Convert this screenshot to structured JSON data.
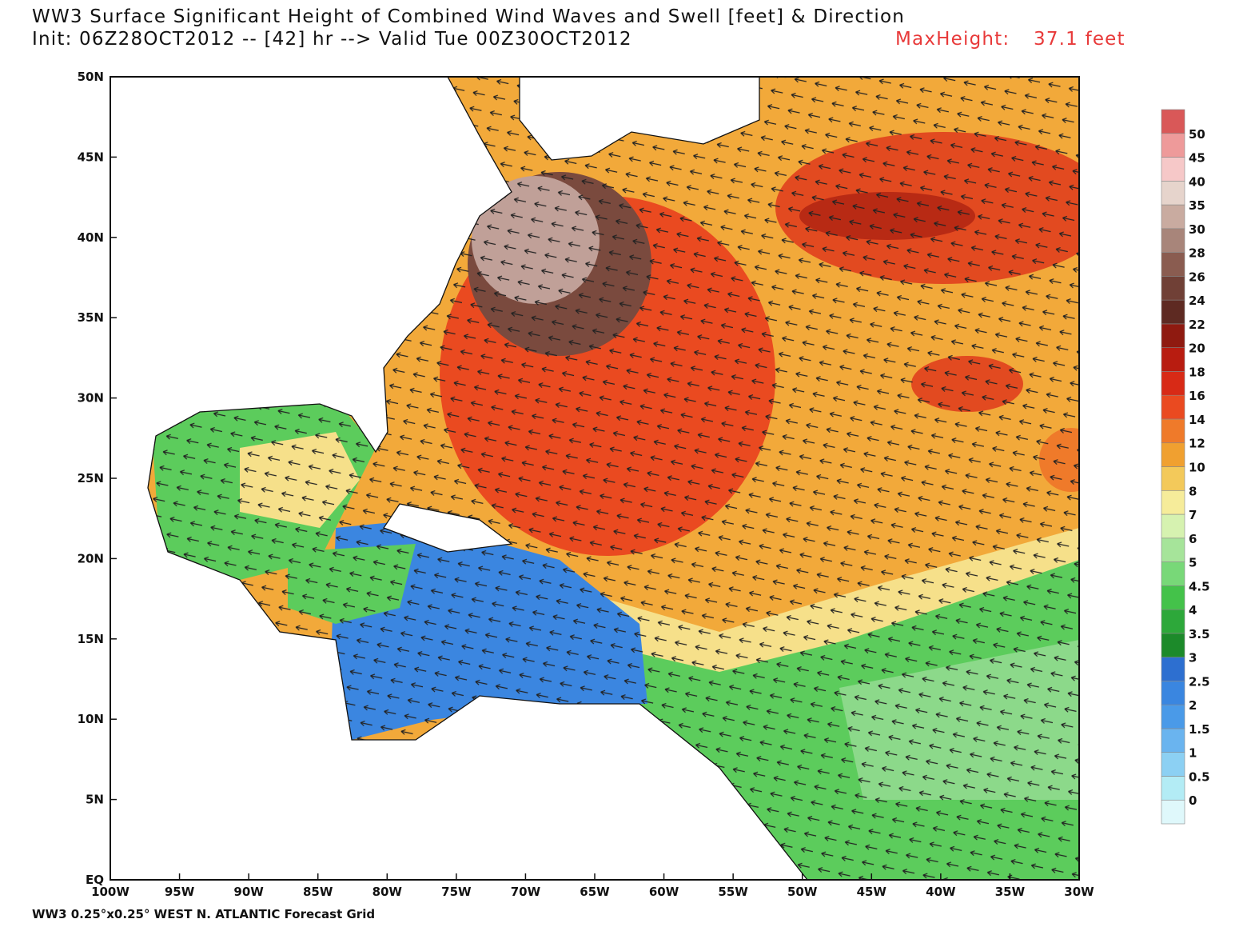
{
  "header": {
    "title": "WW3 Surface Significant Height of Combined Wind Waves and Swell [feet] & Direction",
    "subtitle": "Init: 06Z28OCT2012 -- [42] hr --> Valid Tue 00Z30OCT2012",
    "max_label": "MaxHeight:",
    "max_value": "37.1 feet"
  },
  "map": {
    "xlim": [
      -100,
      -30
    ],
    "ylim": [
      0,
      50
    ],
    "xticks": [
      {
        "value": -100,
        "label": "100W"
      },
      {
        "value": -95,
        "label": "95W"
      },
      {
        "value": -90,
        "label": "90W"
      },
      {
        "value": -85,
        "label": "85W"
      },
      {
        "value": -80,
        "label": "80W"
      },
      {
        "value": -75,
        "label": "75W"
      },
      {
        "value": -70,
        "label": "70W"
      },
      {
        "value": -65,
        "label": "65W"
      },
      {
        "value": -60,
        "label": "60W"
      },
      {
        "value": -55,
        "label": "55W"
      },
      {
        "value": -50,
        "label": "50W"
      },
      {
        "value": -45,
        "label": "45W"
      },
      {
        "value": -40,
        "label": "40W"
      },
      {
        "value": -35,
        "label": "35W"
      },
      {
        "value": -30,
        "label": "30W"
      }
    ],
    "yticks": [
      {
        "value": 0,
        "label": "EQ"
      },
      {
        "value": 5,
        "label": "5N"
      },
      {
        "value": 10,
        "label": "10N"
      },
      {
        "value": 15,
        "label": "15N"
      },
      {
        "value": 20,
        "label": "20N"
      },
      {
        "value": 25,
        "label": "25N"
      },
      {
        "value": 30,
        "label": "30N"
      },
      {
        "value": 35,
        "label": "35N"
      },
      {
        "value": 40,
        "label": "40N"
      },
      {
        "value": 45,
        "label": "45N"
      },
      {
        "value": 50,
        "label": "50N"
      }
    ]
  },
  "colorbar": {
    "levels": [
      0,
      0.5,
      1,
      1.5,
      2,
      2.5,
      3,
      3.5,
      4,
      4.5,
      5,
      6,
      7,
      8,
      10,
      12,
      14,
      16,
      18,
      20,
      22,
      24,
      26,
      28,
      30,
      35,
      40,
      45,
      50
    ],
    "colors": [
      "#dff8fb",
      "#b3ecf5",
      "#8cd0f3",
      "#6ab4ef",
      "#4a9ae8",
      "#3a86e0",
      "#2d6fd0",
      "#1c8a2a",
      "#2da83a",
      "#44c24a",
      "#78d878",
      "#a6e49a",
      "#d6f2b0",
      "#f6ec9a",
      "#f3c95a",
      "#f0a030",
      "#ef7a2a",
      "#ea4a20",
      "#d82a16",
      "#b81c10",
      "#8f1a10",
      "#5e2a22",
      "#704036",
      "#8a5c50",
      "#a8857a",
      "#c9aba0",
      "#e6d4cc",
      "#f6c8c8",
      "#ee9a9a",
      "#d95858"
    ]
  },
  "footer": "WW3 0.25°x0.25° WEST N. ATLANTIC Forecast Grid"
}
